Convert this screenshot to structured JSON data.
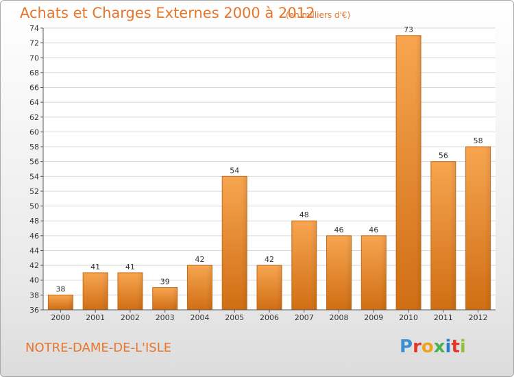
{
  "header": {
    "title": "Achats et Charges Externes 2000 à 2012",
    "unit": "(en milliers d'€)"
  },
  "footer": {
    "commune": "NOTRE-DAME-DE-L'ISLE",
    "logo_text": "Proxiti"
  },
  "colors": {
    "accent": "#e8752a",
    "bar_light": "#f5a14e",
    "bar_dark": "#cf6c12"
  },
  "chart_data": {
    "type": "bar",
    "title": "Achats et Charges Externes 2000 à 2012",
    "subtitle": "(en milliers d'€)",
    "xlabel": "",
    "ylabel": "",
    "categories": [
      "2000",
      "2001",
      "2002",
      "2003",
      "2004",
      "2005",
      "2006",
      "2007",
      "2008",
      "2009",
      "2010",
      "2011",
      "2012"
    ],
    "values": [
      38,
      41,
      41,
      39,
      42,
      54,
      42,
      48,
      46,
      46,
      73,
      56,
      58
    ],
    "ylim": [
      36,
      74
    ],
    "yticks": [
      36,
      38,
      40,
      42,
      44,
      46,
      48,
      50,
      52,
      54,
      56,
      58,
      60,
      62,
      64,
      66,
      68,
      70,
      72,
      74
    ],
    "grid": true,
    "legend": "none"
  }
}
